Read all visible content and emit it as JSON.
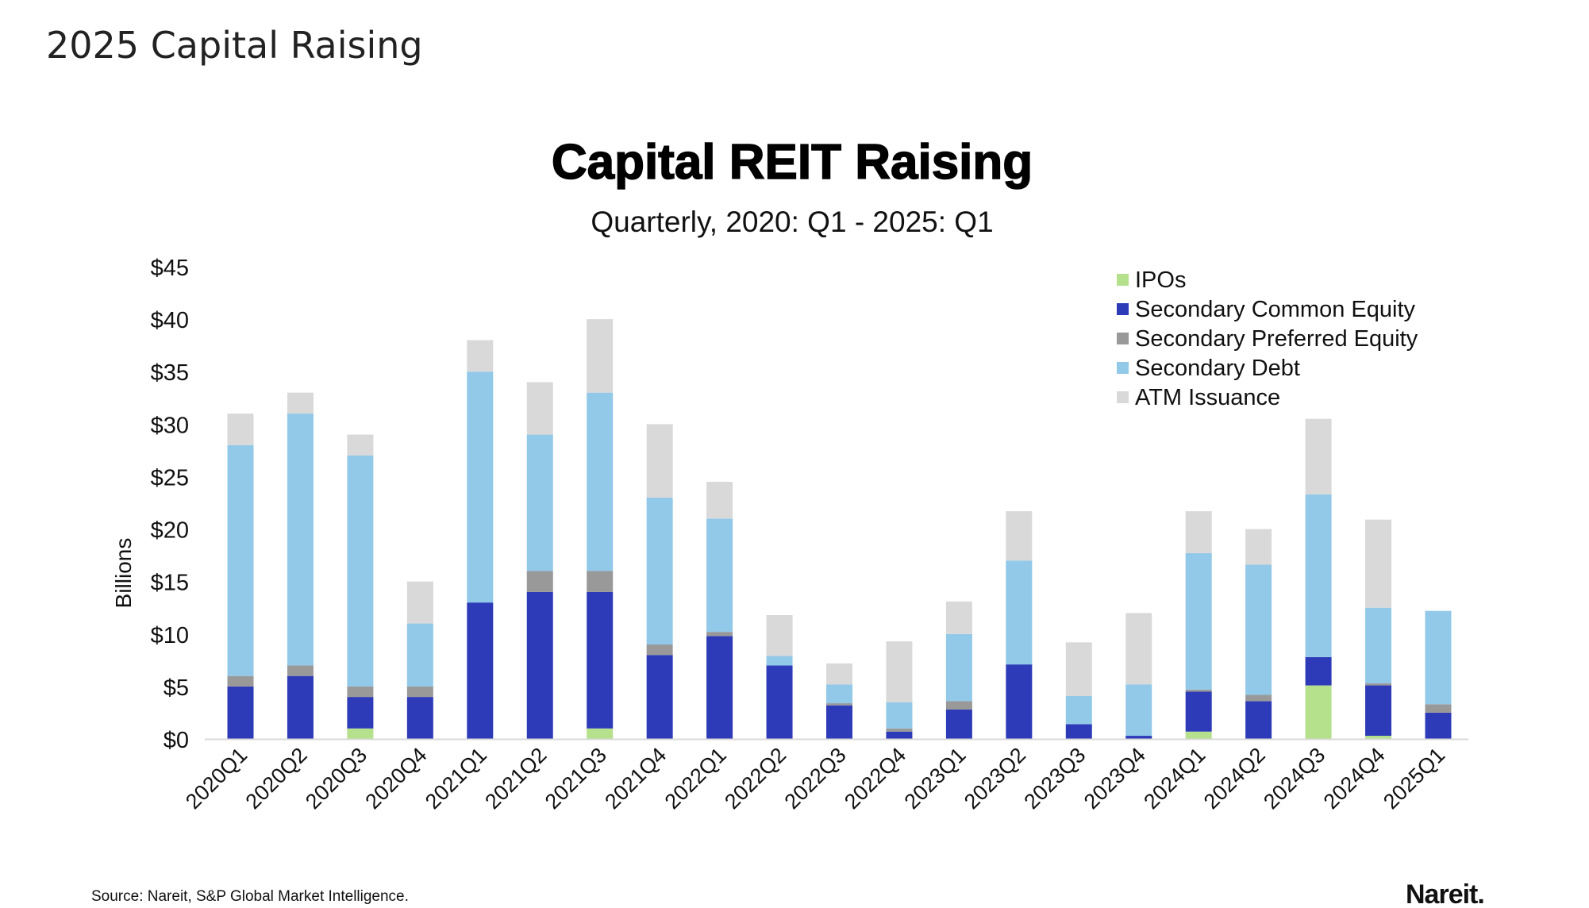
{
  "page": {
    "title": "2025 Capital Raising"
  },
  "chart_data": {
    "type": "bar",
    "stacked": true,
    "title": "Capital REIT Raising",
    "subtitle": "Quarterly, 2020: Q1 - 2025: Q1",
    "ylabel": "Billions",
    "xlabel": "",
    "ylim": [
      0,
      45
    ],
    "yticks": [
      "$0",
      "$5",
      "$10",
      "$15",
      "$20",
      "$25",
      "$30",
      "$35",
      "$40",
      "$45"
    ],
    "grid": false,
    "legend_position": "top-right",
    "categories": [
      "2020Q1",
      "2020Q2",
      "2020Q3",
      "2020Q4",
      "2021Q1",
      "2021Q2",
      "2021Q3",
      "2021Q4",
      "2022Q1",
      "2022Q2",
      "2022Q3",
      "2022Q4",
      "2023Q1",
      "2023Q2",
      "2023Q3",
      "2023Q4",
      "2024Q1",
      "2024Q2",
      "2024Q3",
      "2024Q4",
      "2025Q1"
    ],
    "series": [
      {
        "name": "IPOs",
        "color": "#b5e08c",
        "values": [
          0,
          0,
          1,
          0,
          0,
          0,
          1,
          0,
          0,
          0,
          0,
          0,
          0,
          0,
          0,
          0,
          0.7,
          0,
          5.1,
          0.3,
          0
        ]
      },
      {
        "name": "Secondary Common Equity",
        "color": "#2e3bb8",
        "values": [
          5,
          6,
          3,
          4,
          13,
          14,
          13,
          8,
          9.8,
          7,
          3.2,
          0.7,
          2.8,
          7.1,
          1.4,
          0.3,
          3.8,
          3.6,
          2.7,
          4.8,
          2.5
        ]
      },
      {
        "name": "Secondary Preferred Equity",
        "color": "#999999",
        "values": [
          1,
          1,
          1,
          1,
          0,
          2,
          2,
          1,
          0.4,
          0,
          0.2,
          0.3,
          0.8,
          0,
          0,
          0,
          0.2,
          0.6,
          0,
          0.2,
          0.8
        ]
      },
      {
        "name": "Secondary Debt",
        "color": "#92c8e8",
        "values": [
          22,
          24,
          22,
          6,
          22,
          13,
          17,
          14,
          10.8,
          0.9,
          1.8,
          2.5,
          6.4,
          9.9,
          2.7,
          4.9,
          13,
          12.4,
          15.5,
          7.2,
          8.9
        ]
      },
      {
        "name": "ATM Issuance",
        "color": "#d9d9d9",
        "values": [
          3,
          2,
          2,
          4,
          3,
          5,
          7,
          7,
          3.5,
          3.9,
          2,
          5.8,
          3.1,
          4.7,
          5.1,
          6.8,
          4,
          3.4,
          7.2,
          8.4,
          0
        ]
      }
    ],
    "source": "Source: Nareit, S&P Global Market Intelligence.",
    "logo": "Nareit"
  }
}
